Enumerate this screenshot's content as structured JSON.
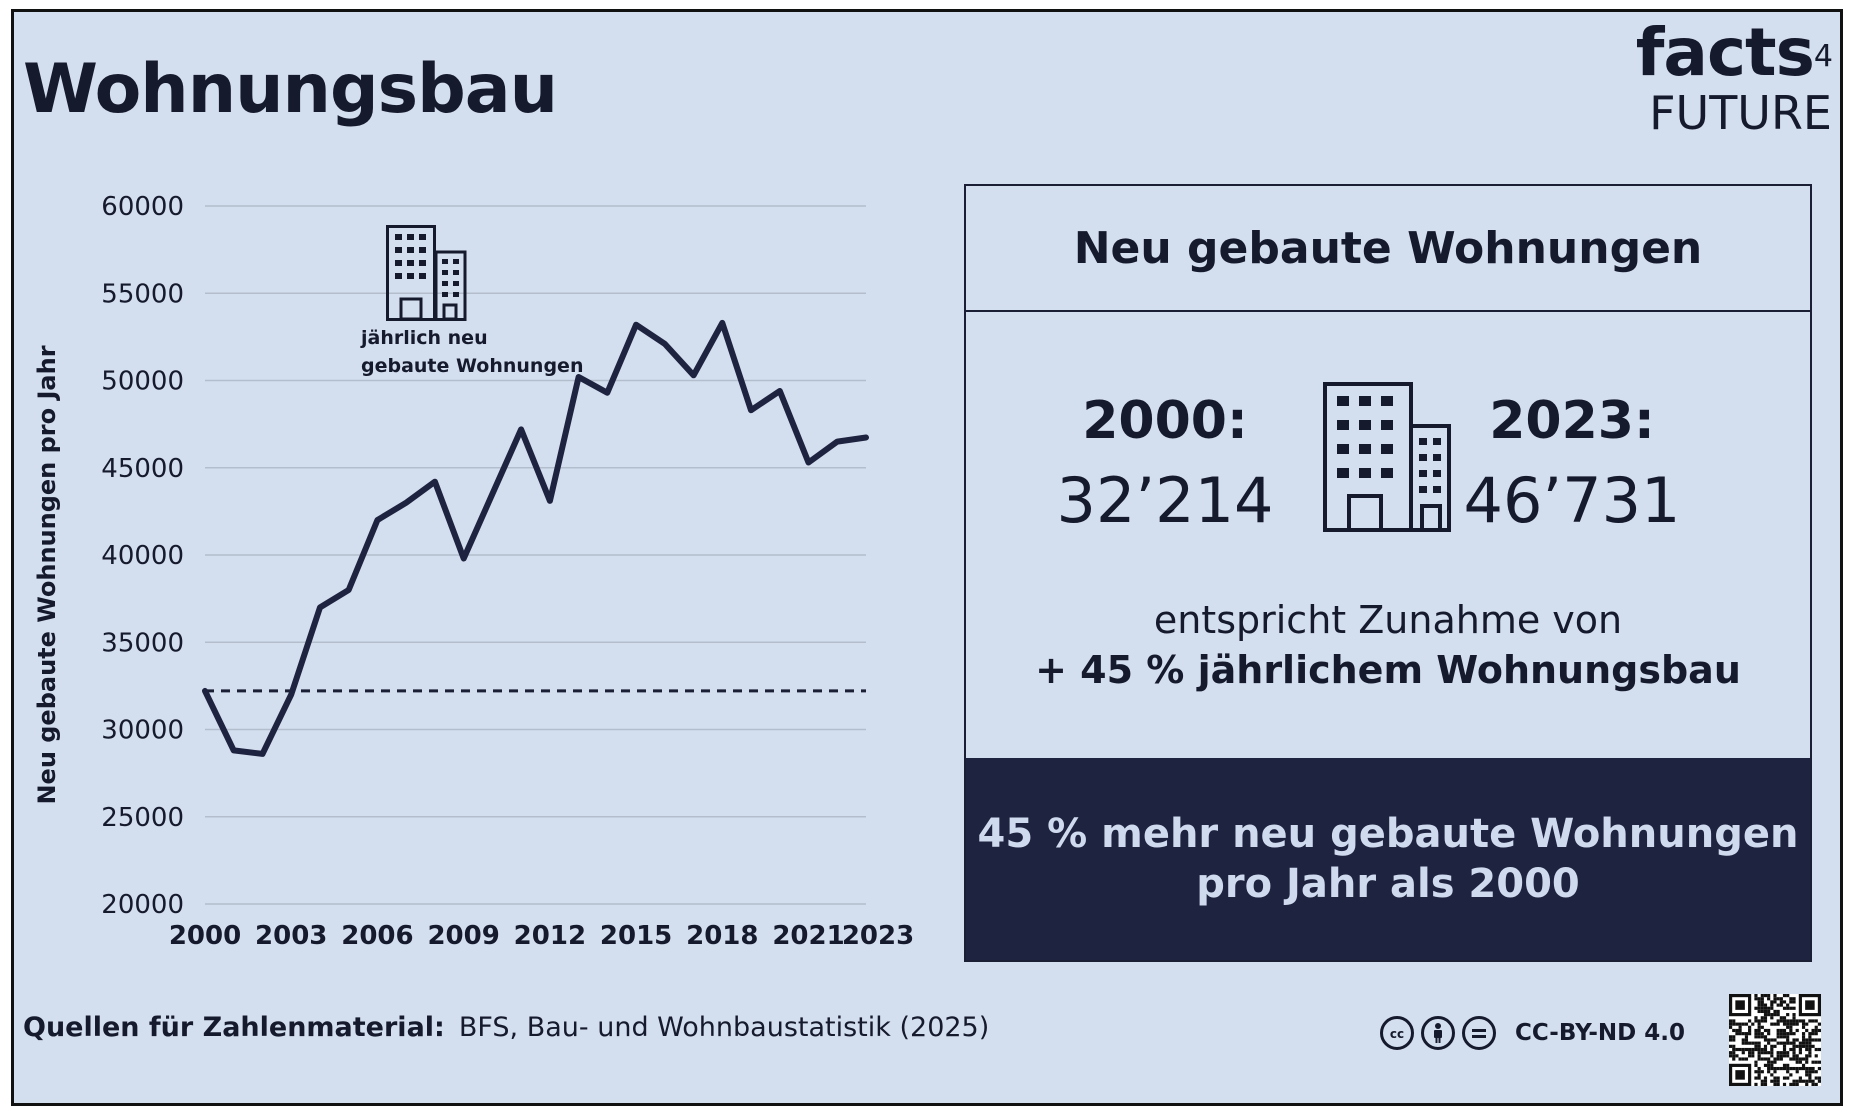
{
  "title": "Wohnungsbau",
  "logo": {
    "main": "facts",
    "superscript": "4",
    "sub": "FUTURE"
  },
  "colors": {
    "background": "#d3deef",
    "line": "#1e2340",
    "grid": "#b3bdcc",
    "dark_panel": "#1e2340",
    "dark_panel_text": "#cfdaee"
  },
  "chart_data": {
    "type": "line",
    "ylabel": "Neu gebaute Wohnungen pro Jahr",
    "ylim": [
      20000,
      60000
    ],
    "yticks": [
      60000,
      55000,
      50000,
      45000,
      40000,
      35000,
      30000,
      25000,
      20000
    ],
    "xticks": [
      2000,
      2003,
      2006,
      2009,
      2012,
      2015,
      2018,
      2021,
      2023
    ],
    "x": [
      2000,
      2001,
      2002,
      2003,
      2004,
      2005,
      2006,
      2007,
      2008,
      2009,
      2010,
      2011,
      2012,
      2013,
      2014,
      2015,
      2016,
      2017,
      2018,
      2019,
      2020,
      2021,
      2022,
      2023
    ],
    "series": [
      {
        "values": [
          32214,
          28800,
          28600,
          32000,
          37000,
          38000,
          42000,
          43000,
          44200,
          39800,
          43500,
          47200,
          43100,
          50200,
          49300,
          53200,
          52100,
          50300,
          53300,
          48300,
          49400,
          45300,
          46500,
          46731
        ]
      }
    ],
    "reference_line": {
      "value": 32214,
      "style": "dashed"
    },
    "annotation": {
      "icon": "building-icon",
      "text_line1": "jährlich neu",
      "text_line2": "gebaute Wohnungen"
    }
  },
  "panel": {
    "header": "Neu gebaute Wohnungen",
    "left_year": "2000:",
    "left_value": "32’214",
    "right_year": "2023:",
    "right_value": "46’731",
    "line1": "entspricht Zunahme von",
    "line2": "+ 45 % jährlichem Wohnungsbau",
    "footer_line1": "45 % mehr neu gebaute Wohnungen",
    "footer_line2": "pro Jahr als 2000"
  },
  "source": {
    "label": "Quellen für Zahlenmaterial:",
    "text": "BFS, Bau- und Wohnbaustatistik (2025)"
  },
  "license": {
    "icons": [
      "cc-icon",
      "by-icon",
      "nd-icon"
    ],
    "text": "CC-BY-ND 4.0"
  },
  "qr": {
    "icon": "qr-code-icon"
  }
}
